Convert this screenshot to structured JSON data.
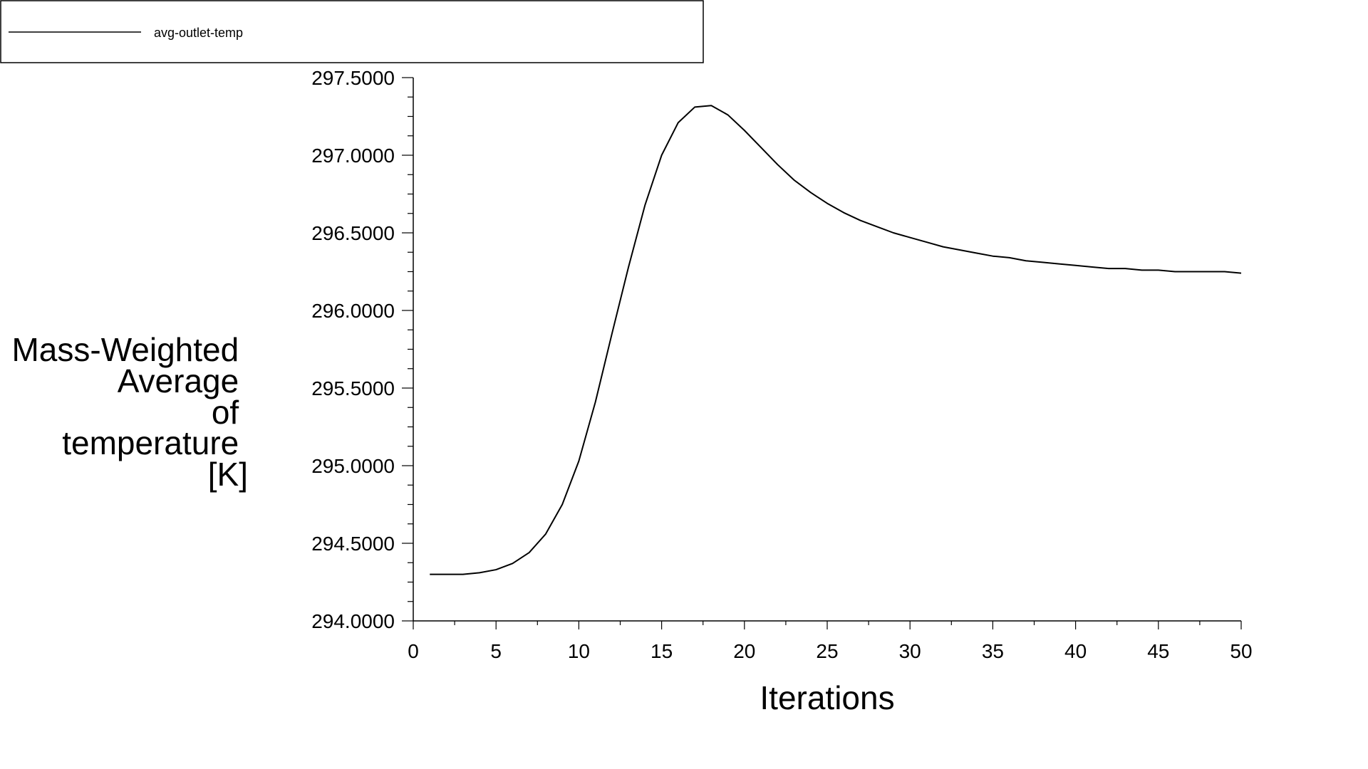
{
  "chart_data": {
    "type": "line",
    "title": "",
    "xlabel": "Iterations",
    "ylabel_lines": [
      "Mass-Weighted",
      "Average",
      "of",
      "temperature",
      "[K]"
    ],
    "xlim": [
      0,
      50
    ],
    "ylim": [
      294.0,
      297.5
    ],
    "x_ticks": [
      "0",
      "5",
      "10",
      "15",
      "20",
      "25",
      "30",
      "35",
      "40",
      "45",
      "50"
    ],
    "y_ticks": [
      "294.0000",
      "294.5000",
      "295.0000",
      "295.5000",
      "296.0000",
      "296.5000",
      "297.0000",
      "297.5000"
    ],
    "grid": false,
    "legend_position": "top-left",
    "series": [
      {
        "name": "avg-outlet-temp",
        "color": "#000000",
        "x": [
          1,
          2,
          3,
          4,
          5,
          6,
          7,
          8,
          9,
          10,
          11,
          12,
          13,
          14,
          15,
          16,
          17,
          18,
          19,
          20,
          21,
          22,
          23,
          24,
          25,
          26,
          27,
          28,
          29,
          30,
          31,
          32,
          33,
          34,
          35,
          36,
          37,
          38,
          39,
          40,
          41,
          42,
          43,
          44,
          45,
          46,
          47,
          48,
          49,
          50
        ],
        "values": [
          294.3,
          294.3,
          294.3,
          294.31,
          294.33,
          294.37,
          294.44,
          294.56,
          294.75,
          295.03,
          295.41,
          295.85,
          296.28,
          296.68,
          297.0,
          297.21,
          297.31,
          297.32,
          297.26,
          297.16,
          297.05,
          296.94,
          296.84,
          296.76,
          296.69,
          296.63,
          296.58,
          296.54,
          296.5,
          296.47,
          296.44,
          296.41,
          296.39,
          296.37,
          296.35,
          296.34,
          296.32,
          296.31,
          296.3,
          296.29,
          296.28,
          296.27,
          296.27,
          296.26,
          296.26,
          296.25,
          296.25,
          296.25,
          296.25,
          296.24
        ]
      }
    ]
  }
}
